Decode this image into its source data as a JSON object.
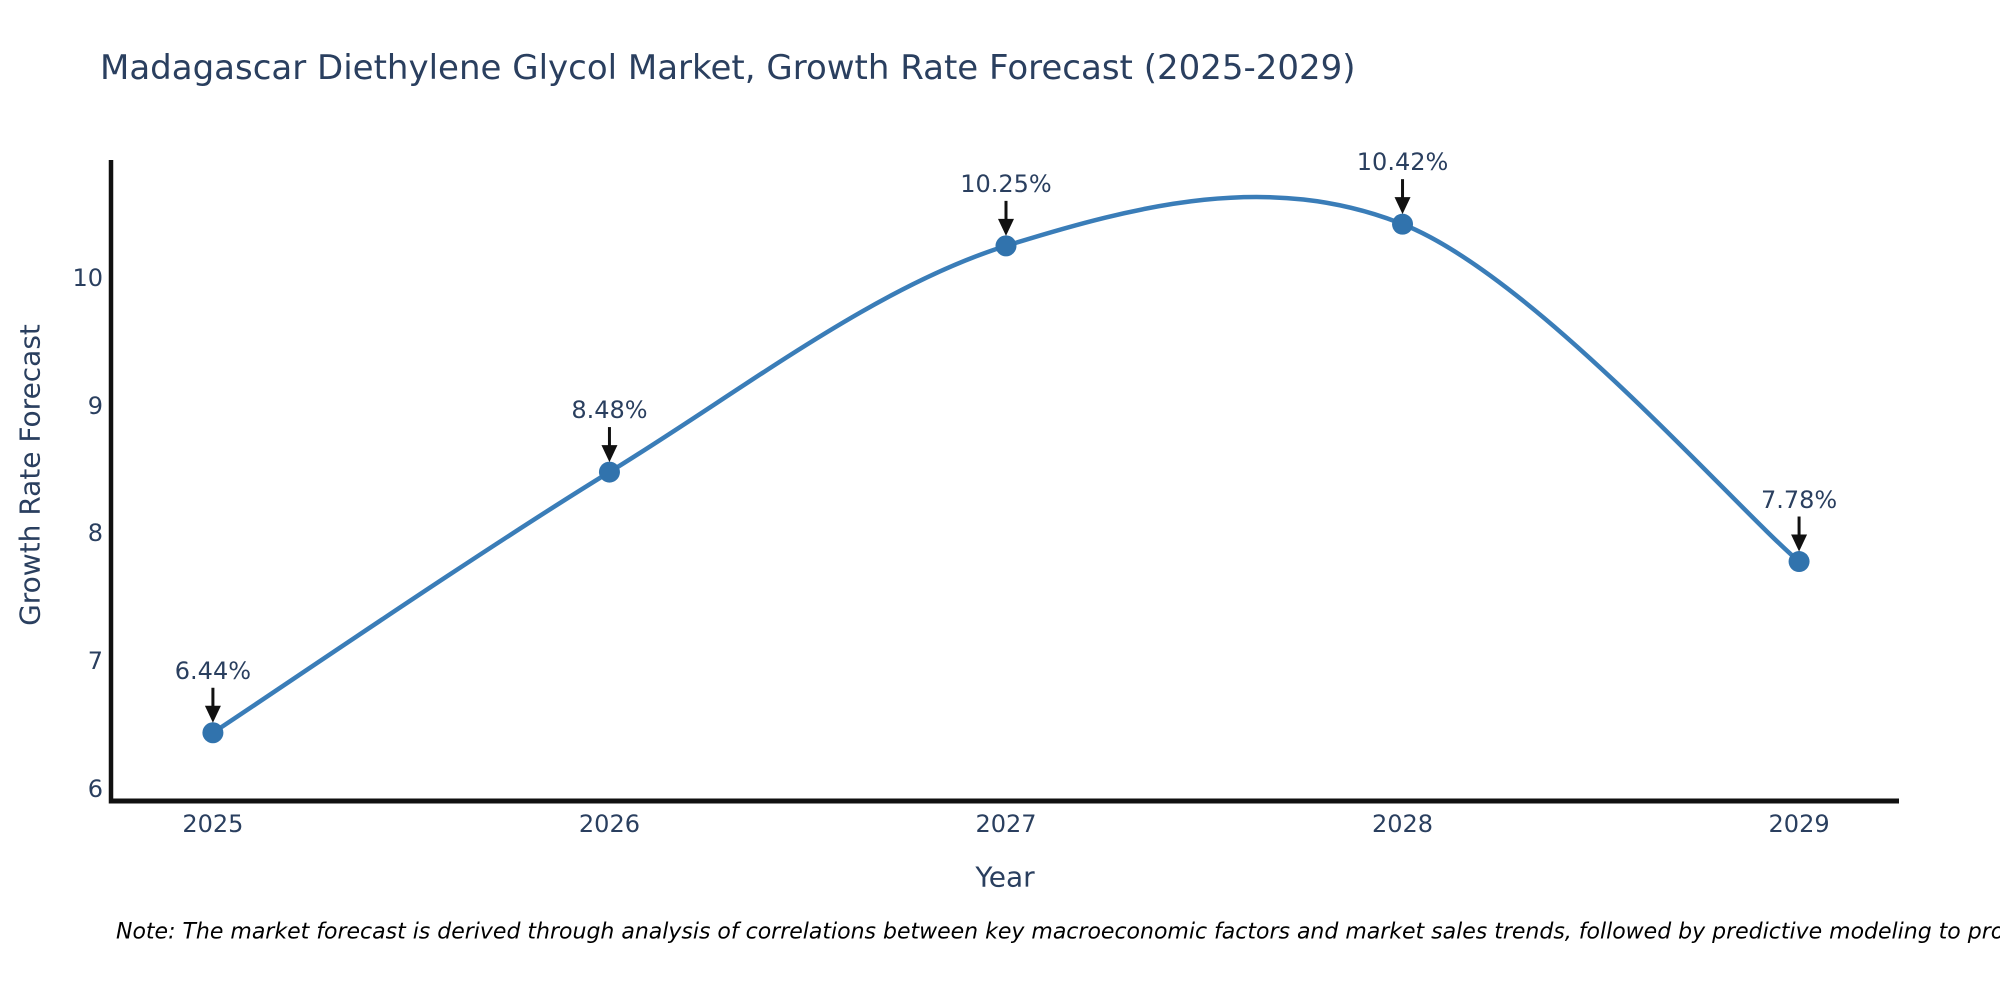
{
  "title": "Madagascar Diethylene Glycol Market, Growth Rate Forecast (2025-2029)",
  "note": "Note: The market forecast is derived through analysis of correlations between key macroeconomic factors and market sales trends, followed by predictive modeling to project future sales",
  "chart_data": {
    "type": "line",
    "title": "Madagascar Diethylene Glycol Market, Growth Rate Forecast (2025-2029)",
    "xlabel": "Year",
    "ylabel": "Growth Rate Forecast",
    "x": [
      2025,
      2026,
      2027,
      2028,
      2029
    ],
    "values": [
      6.44,
      8.48,
      10.25,
      10.42,
      7.78
    ],
    "point_labels": [
      "6.44%",
      "8.48%",
      "10.25%",
      "10.42%",
      "7.78%"
    ],
    "xtick_labels": [
      "2025",
      "2026",
      "2027",
      "2028",
      "2029"
    ],
    "ytick_values": [
      6,
      7,
      8,
      9,
      10
    ],
    "xlim": [
      2024.743,
      2029.252
    ],
    "ylim": [
      5.906,
      10.922
    ],
    "line_shape": "spline",
    "grid": false,
    "legend_position": "none",
    "colors": {
      "line": "#3a7db8",
      "marker": "#3173ad",
      "axis_line": "#111111",
      "text": "#2a3f5f",
      "annotation_arrow": "#111111",
      "note_text": "#000000"
    }
  }
}
